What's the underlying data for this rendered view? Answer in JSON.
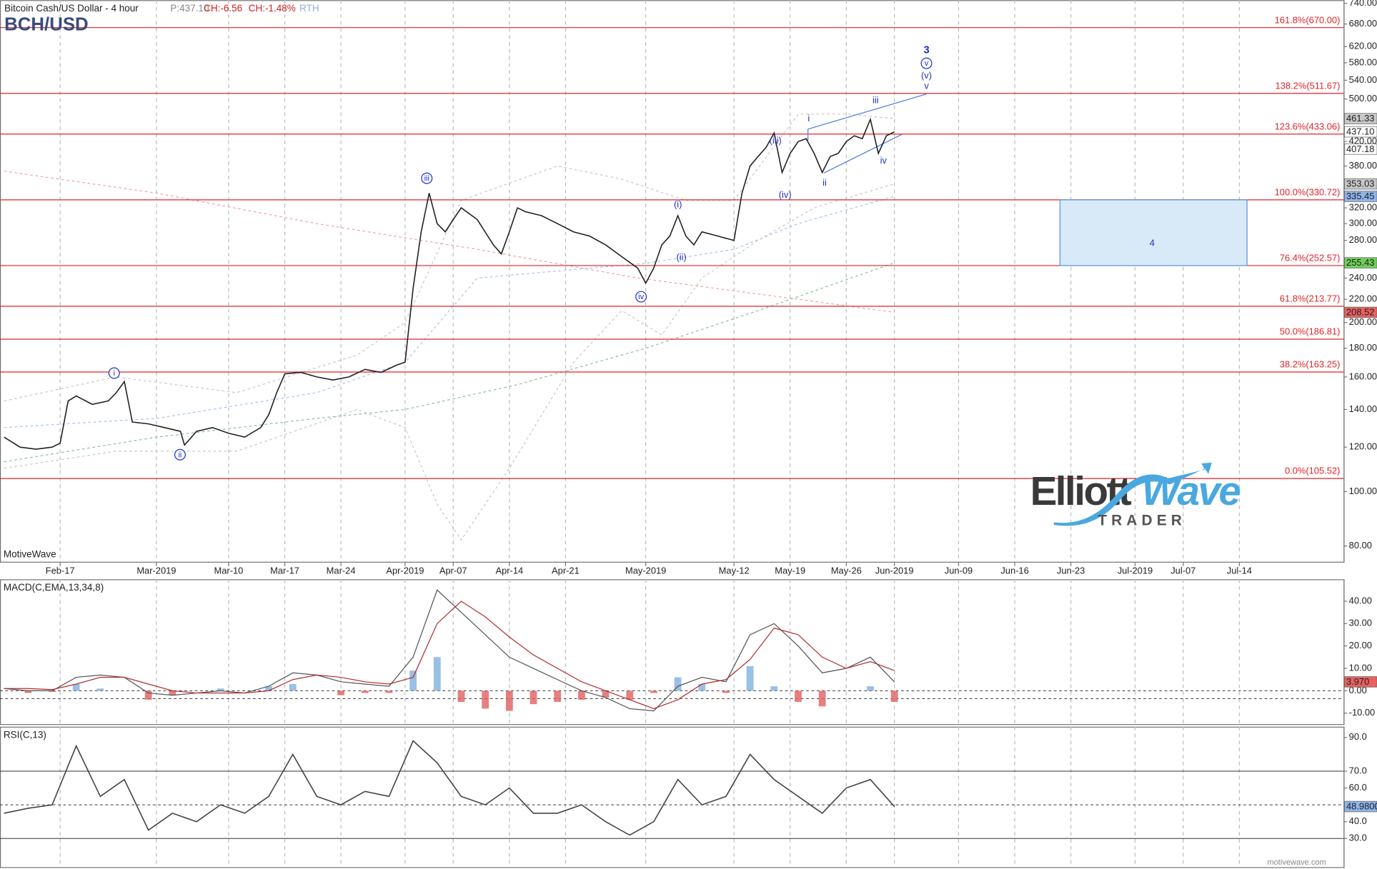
{
  "header": {
    "subtitle": "Bitcoin Cash/US Dollar - 4 hour",
    "quote": [
      "P:437.10",
      "CH:-6.56",
      "CH:-1.48%",
      "RTH"
    ],
    "title": "BCH/USD"
  },
  "watermark_left": "MotiveWave",
  "watermark_right": "motivewave.com",
  "logo": {
    "word1": "Elliott",
    "word2": "Wave",
    "word3": "TRADER"
  },
  "chart_data": [
    {
      "type": "line",
      "color": "#222222",
      "x": [
        -19,
        -17,
        -15,
        -13,
        -12,
        -11,
        -10,
        -8,
        -6,
        -5,
        -4,
        -3,
        -1,
        1,
        3,
        3.5,
        5,
        7,
        9,
        11,
        13,
        14,
        15,
        16,
        18,
        20,
        22,
        24,
        26,
        28,
        30,
        31,
        32,
        33,
        34,
        35,
        36,
        37,
        38,
        40,
        42,
        43,
        44,
        45,
        46,
        48,
        50,
        52,
        54,
        56,
        58,
        60,
        61,
        62,
        63,
        64,
        65,
        66,
        67,
        68,
        70,
        72,
        73,
        74,
        75,
        76,
        77,
        78,
        79,
        80,
        81,
        82,
        83,
        84,
        85,
        86,
        87,
        88,
        89,
        90,
        91,
        92
      ],
      "values": [
        125,
        120,
        119,
        120,
        122,
        145,
        148,
        143,
        145,
        150,
        157,
        133,
        132,
        130,
        128,
        121,
        128,
        130,
        127,
        125,
        130,
        137,
        150,
        162,
        163,
        160,
        158,
        160,
        165,
        163,
        168,
        170,
        230,
        290,
        340,
        300,
        290,
        305,
        320,
        305,
        275,
        265,
        290,
        320,
        315,
        310,
        300,
        290,
        285,
        275,
        262,
        250,
        235,
        250,
        275,
        285,
        310,
        285,
        275,
        290,
        285,
        280,
        340,
        380,
        395,
        410,
        435,
        370,
        400,
        420,
        425,
        400,
        370,
        395,
        400,
        420,
        430,
        425,
        460,
        400,
        430,
        437.1
      ],
      "overlays": [
        {
          "color": "#f4a0a0",
          "x": [
            -19,
            0,
            20,
            40,
            60,
            80,
            92
          ],
          "values": [
            372,
            340,
            300,
            270,
            240,
            220,
            208.52
          ]
        },
        {
          "color": "#88c0a0",
          "x": [
            -19,
            0,
            20,
            31,
            45,
            61,
            75,
            92
          ],
          "values": [
            113,
            125,
            135,
            140,
            155,
            180,
            210,
            255.43
          ]
        },
        {
          "color": "#a8c4ec",
          "x": [
            -19,
            0,
            20,
            31,
            40,
            61,
            72,
            80,
            92
          ],
          "values": [
            130,
            135,
            150,
            170,
            240,
            255,
            270,
            300,
            335.45
          ]
        },
        {
          "color": "#c8c8c8",
          "x": [
            -19,
            -5,
            10,
            25,
            31,
            38,
            50,
            58,
            66,
            72,
            80,
            86,
            92
          ],
          "values": [
            145,
            160,
            150,
            175,
            200,
            330,
            380,
            360,
            330,
            330,
            470,
            470,
            461.33
          ]
        },
        {
          "color": "#c8c8c8",
          "x": [
            -19,
            -5,
            10,
            25,
            31,
            35,
            38,
            44,
            52,
            58,
            63,
            68,
            75,
            82,
            92
          ],
          "values": [
            110,
            118,
            118,
            140,
            130,
            95,
            82,
            110,
            170,
            210,
            190,
            240,
            280,
            320,
            353.03
          ]
        }
      ],
      "xlim": [
        -19.5,
        148
      ],
      "xticks": [
        {
          "value": -12,
          "label": "Feb-17"
        },
        {
          "value": 0,
          "label": "Mar-2019"
        },
        {
          "value": 9,
          "label": "Mar-10"
        },
        {
          "value": 16,
          "label": "Mar-17"
        },
        {
          "value": 23,
          "label": "Mar-24"
        },
        {
          "value": 31,
          "label": "Apr-2019"
        },
        {
          "value": 37,
          "label": "Apr-07"
        },
        {
          "value": 44,
          "label": "Apr-14"
        },
        {
          "value": 51,
          "label": "Apr-21"
        },
        {
          "value": 61,
          "label": "May-2019"
        },
        {
          "value": 72,
          "label": "May-12"
        },
        {
          "value": 79,
          "label": "May-19"
        },
        {
          "value": 86,
          "label": "May-26"
        },
        {
          "value": 92,
          "label": "Jun-2019"
        },
        {
          "value": 100,
          "label": "Jun-09"
        },
        {
          "value": 107,
          "label": "Jun-16"
        },
        {
          "value": 114,
          "label": "Jun-23"
        },
        {
          "value": 122,
          "label": "Jul-2019"
        },
        {
          "value": 128,
          "label": "Jul-07"
        },
        {
          "value": 135,
          "label": "Jul-14"
        }
      ],
      "ylim": [
        75,
        750
      ],
      "log_scale": true,
      "grid": true,
      "yticks": [
        {
          "value": 80,
          "label": "80.00"
        },
        {
          "value": 100,
          "label": "100.00"
        },
        {
          "value": 120,
          "label": "120.00"
        },
        {
          "value": 140,
          "label": "140.00"
        },
        {
          "value": 160,
          "label": "160.00"
        },
        {
          "value": 180,
          "label": "180.00"
        },
        {
          "value": 200,
          "label": "200.00"
        },
        {
          "value": 220,
          "label": "220.00"
        },
        {
          "value": 240,
          "label": "240.00"
        },
        {
          "value": 280,
          "label": "280.00"
        },
        {
          "value": 300,
          "label": "300.00"
        },
        {
          "value": 320,
          "label": "320.00"
        },
        {
          "value": 380,
          "label": "380.00"
        },
        {
          "value": 420,
          "label": "420.00"
        },
        {
          "value": 500,
          "label": "500.00"
        },
        {
          "value": 540,
          "label": "540.00"
        },
        {
          "value": 580,
          "label": "580.00"
        },
        {
          "value": 620,
          "label": "620.00"
        },
        {
          "value": 680,
          "label": "680.00"
        },
        {
          "value": 740,
          "label": "740.00"
        }
      ],
      "fib_levels": [
        {
          "value": 670,
          "label": "161.8%(670.00)"
        },
        {
          "value": 511.67,
          "label": "138.2%(511.67)"
        },
        {
          "value": 433.06,
          "label": "123.6%(433.06)"
        },
        {
          "value": 330.72,
          "label": "100.0%(330.72)"
        },
        {
          "value": 252.57,
          "label": "76.4%(252.57)"
        },
        {
          "value": 213.77,
          "label": "61.8%(213.77)"
        },
        {
          "value": 186.81,
          "label": "50.0%(186.81)"
        },
        {
          "value": 163.25,
          "label": "38.2%(163.25)"
        },
        {
          "value": 105.52,
          "label": "0.0%(105.52)"
        }
      ],
      "fib_color": "#e0242a",
      "axis_tags": [
        {
          "value": 461.33,
          "color": "#c8c8c8"
        },
        {
          "value": 437.1,
          "label": "437.10",
          "color": "#ffffff"
        },
        {
          "value": 407.18,
          "color": "#ffffff"
        },
        {
          "value": 353.03,
          "color": "#c8c8c8"
        },
        {
          "value": 335.45,
          "color": "#8fb4ea"
        },
        {
          "value": 255.43,
          "color": "#6fcf5a"
        },
        {
          "value": 208.52,
          "color": "#e86060"
        }
      ],
      "wave_labels": [
        "3",
        "v",
        "(v)",
        "v",
        "iii",
        "i",
        "(iii)",
        "ii",
        "(iv)",
        "iv",
        "iii",
        "i",
        "(i)",
        "ii",
        "(ii)",
        "iv",
        "4"
      ]
    },
    {
      "type": "macd",
      "title": "MACD(C,EMA,13,34,8)",
      "x": [
        -19,
        -16,
        -13,
        -10,
        -7,
        -4,
        -1,
        2,
        5,
        8,
        11,
        14,
        17,
        20,
        23,
        26,
        29,
        32,
        35,
        38,
        41,
        44,
        47,
        50,
        53,
        56,
        59,
        62,
        65,
        68,
        71,
        74,
        77,
        80,
        83,
        86,
        89,
        92
      ],
      "series": [
        {
          "color": "#555555",
          "values": [
            1,
            0,
            0,
            6,
            7,
            6,
            -1,
            -2,
            -1,
            0,
            -1,
            2,
            8,
            7,
            4,
            3,
            2,
            15,
            45,
            35,
            25,
            15,
            10,
            5,
            0,
            -3,
            -8,
            -9,
            2,
            6,
            4,
            25,
            30,
            20,
            8,
            10,
            15,
            3.97
          ]
        },
        {
          "color": "#b03030",
          "values": [
            1,
            1,
            0.5,
            3,
            6,
            6,
            3,
            0,
            -1,
            -1,
            -1,
            0,
            5,
            7,
            6,
            4,
            3,
            6,
            30,
            40,
            33,
            24,
            16,
            10,
            4,
            0,
            -4,
            -8,
            -4,
            3,
            5,
            14,
            28,
            25,
            15,
            10,
            13,
            9
          ]
        }
      ],
      "histogram": {
        "values": [
          0,
          -1,
          -0.5,
          3,
          1,
          0,
          -4,
          -2,
          0,
          1,
          0,
          2,
          3,
          0,
          -2,
          -1,
          -1,
          9,
          15,
          -5,
          -8,
          -9,
          -6,
          -5,
          -4,
          -3,
          -4,
          -1,
          6,
          3,
          -1,
          11,
          2,
          -5,
          -7,
          0,
          2,
          -5
        ],
        "colors": [
          "#7fb0e0",
          "#e06060"
        ]
      },
      "ylim": [
        -14.9,
        49.8
      ],
      "yticks": [
        {
          "value": 40,
          "label": "40.00"
        },
        {
          "value": 30,
          "label": "30.00"
        },
        {
          "value": 20,
          "label": "20.00"
        },
        {
          "value": 10,
          "label": "10.00"
        },
        {
          "value": 0,
          "label": "0.00"
        },
        {
          "value": -10,
          "label": "-10.00"
        }
      ],
      "levels": [
        0,
        -3.5
      ],
      "axis_tags": [
        {
          "value": 3.97,
          "label": "3.970",
          "color": "#e86060"
        }
      ]
    },
    {
      "type": "line",
      "title": "RSI(C,13)",
      "color": "#444444",
      "x": [
        -19,
        -16,
        -13,
        -10,
        -7,
        -4,
        -1,
        2,
        5,
        8,
        11,
        14,
        17,
        20,
        23,
        26,
        29,
        32,
        35,
        38,
        41,
        44,
        47,
        50,
        53,
        56,
        59,
        62,
        65,
        68,
        71,
        74,
        77,
        80,
        83,
        86,
        89,
        92
      ],
      "values": [
        45,
        48,
        50,
        85,
        55,
        65,
        35,
        45,
        40,
        50,
        45,
        55,
        80,
        55,
        50,
        58,
        55,
        88,
        75,
        55,
        50,
        60,
        45,
        45,
        50,
        40,
        32,
        40,
        65,
        50,
        55,
        80,
        65,
        55,
        45,
        60,
        65,
        48.98
      ],
      "ylim": [
        13,
        96.4
      ],
      "yticks": [
        {
          "value": 90,
          "label": "90.0"
        },
        {
          "value": 70,
          "label": "70.0"
        },
        {
          "value": 60,
          "label": "60.0"
        },
        {
          "value": 40,
          "label": "40.0"
        },
        {
          "value": 30,
          "label": "30.0"
        }
      ],
      "levels": [
        70,
        50,
        30
      ],
      "axis_tags": [
        {
          "value": 48.98,
          "label": "48.9800",
          "color": "#8fb4ea"
        }
      ]
    }
  ]
}
